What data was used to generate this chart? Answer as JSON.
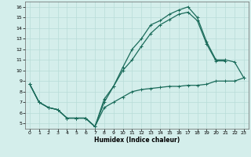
{
  "xlabel": "Humidex (Indice chaleur)",
  "xlim": [
    -0.5,
    23.5
  ],
  "ylim": [
    4.5,
    16.5
  ],
  "yticks": [
    5,
    6,
    7,
    8,
    9,
    10,
    11,
    12,
    13,
    14,
    15,
    16
  ],
  "xticks": [
    0,
    1,
    2,
    3,
    4,
    5,
    6,
    7,
    8,
    9,
    10,
    11,
    12,
    13,
    14,
    15,
    16,
    17,
    18,
    19,
    20,
    21,
    22,
    23
  ],
  "line_color": "#1a6b5a",
  "bg_color": "#d4eeeb",
  "grid_color": "#b8dcd8",
  "line_low_x": [
    0,
    1,
    2,
    3,
    4,
    5,
    6,
    7,
    8,
    9,
    10,
    11,
    12,
    13,
    14,
    15,
    16,
    17,
    18,
    19,
    20,
    21,
    22,
    23
  ],
  "line_low_y": [
    8.7,
    7.0,
    6.5,
    6.3,
    5.5,
    5.5,
    5.5,
    4.7,
    6.5,
    7.0,
    7.5,
    8.0,
    8.2,
    8.3,
    8.4,
    8.5,
    8.5,
    8.6,
    8.6,
    8.7,
    9.0,
    9.0,
    9.0,
    9.3
  ],
  "line_mid_x": [
    0,
    1,
    2,
    3,
    4,
    5,
    6,
    7,
    8,
    9,
    10,
    11,
    12,
    13,
    14,
    15,
    16,
    17,
    18,
    19,
    20,
    21
  ],
  "line_mid_y": [
    8.7,
    7.0,
    6.5,
    6.3,
    5.5,
    5.5,
    5.5,
    4.7,
    7.0,
    8.5,
    10.0,
    11.0,
    12.3,
    13.5,
    14.3,
    14.8,
    15.3,
    15.5,
    14.7,
    12.5,
    10.9,
    10.9
  ],
  "line_up_x": [
    0,
    1,
    2,
    3,
    4,
    5,
    6,
    7,
    8,
    9,
    10,
    11,
    12,
    13,
    14,
    15,
    16,
    17,
    18,
    19,
    20,
    21,
    22,
    23
  ],
  "line_up_y": [
    8.7,
    7.0,
    6.5,
    6.3,
    5.5,
    5.5,
    5.5,
    4.7,
    7.3,
    8.5,
    10.3,
    12.0,
    13.0,
    14.3,
    14.7,
    15.3,
    15.7,
    16.0,
    15.0,
    12.7,
    11.0,
    11.0,
    10.8,
    9.3
  ]
}
